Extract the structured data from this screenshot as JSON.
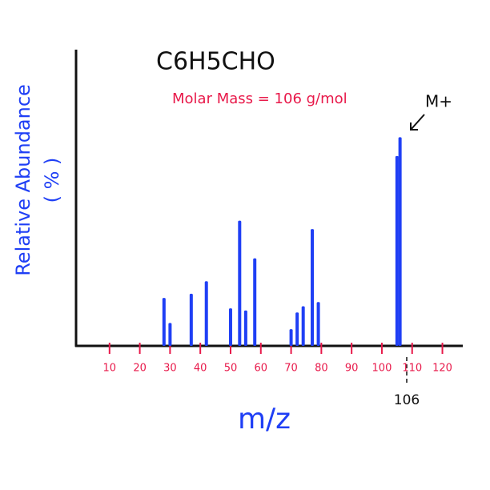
{
  "chart_data": {
    "type": "bar",
    "title": "C6H5CHO",
    "subtitle": "Molar Mass = 106 g/mol",
    "x_label": "m/z",
    "y_label": [
      "Relative Abundance",
      "( % )"
    ],
    "annotations": [
      "M+",
      "106"
    ],
    "x": [
      28,
      30,
      37,
      42,
      50,
      53,
      55,
      58,
      70,
      72,
      74,
      77,
      79,
      105,
      106
    ],
    "values": [
      23,
      11,
      25,
      31,
      18,
      60,
      17,
      42,
      8,
      16,
      19,
      56,
      21,
      91,
      100
    ],
    "color": "#1f3ff5",
    "xlim": [
      0,
      127
    ],
    "xticks": [
      10,
      20,
      30,
      40,
      50,
      60,
      70,
      80,
      90,
      100,
      110,
      120
    ],
    "ylim": [
      0,
      142
    ],
    "tick_color": "#e8194a"
  }
}
